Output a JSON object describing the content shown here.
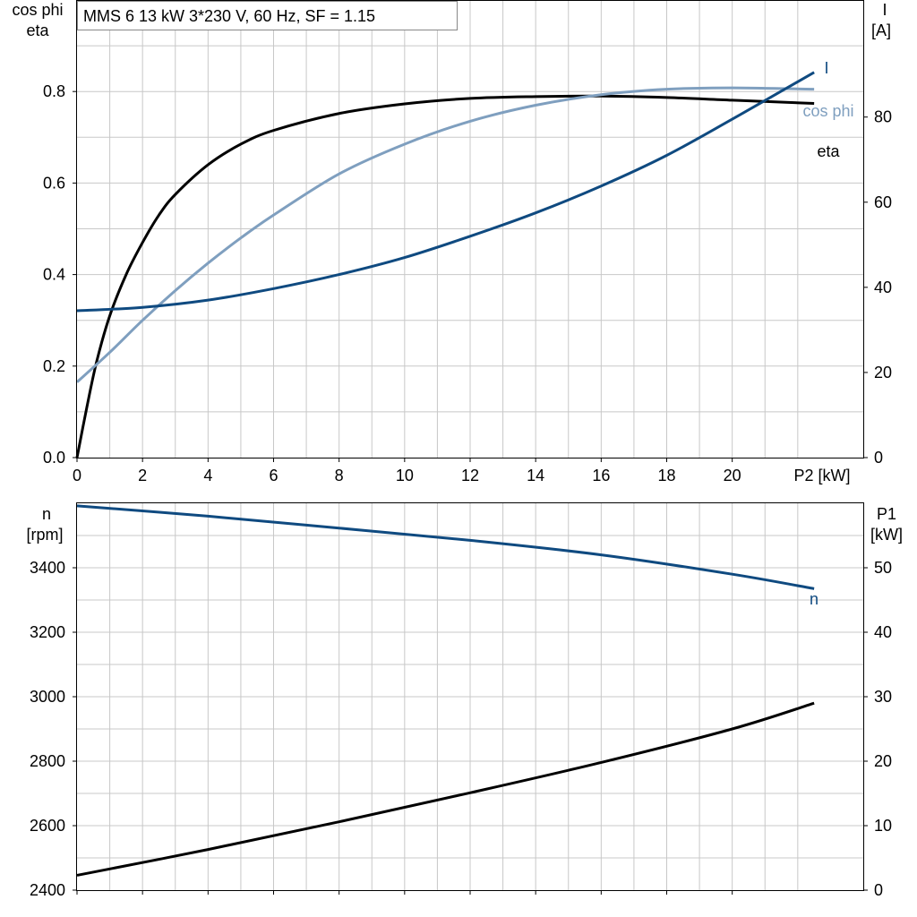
{
  "title": "MMS 6   13 kW   3*230 V, 60 Hz, SF = 1.15",
  "colors": {
    "eta": "#000000",
    "cos_phi": "#7f9fbf",
    "I": "#0f4a80",
    "n": "#0f4a80",
    "P1": "#000000",
    "grid": "#c8c8c8"
  },
  "chart_data": [
    {
      "type": "line",
      "xlabel": "P2 [kW]",
      "xlim": [
        0,
        24
      ],
      "xticks": [
        0,
        2,
        4,
        6,
        8,
        10,
        12,
        14,
        16,
        18,
        20
      ],
      "left_axis": {
        "label_lines": [
          "cos phi",
          "eta"
        ],
        "ylim": [
          0,
          1.0
        ],
        "ticks": [
          0.0,
          0.2,
          0.4,
          0.6,
          0.8
        ],
        "tick_labels": [
          "0.0",
          "0.2",
          "0.4",
          "0.6",
          "0.8"
        ]
      },
      "right_axis": {
        "label_lines": [
          "I",
          "[A]"
        ],
        "ylim": [
          0,
          107.5
        ],
        "ticks": [
          0,
          20,
          40,
          60,
          80
        ],
        "tick_labels": [
          "0",
          "20",
          "40",
          "60",
          "80"
        ]
      },
      "grid": true,
      "series": [
        {
          "name": "eta",
          "axis": "left",
          "x": [
            0,
            0.3,
            0.6,
            1.0,
            1.5,
            2.0,
            2.5,
            3.0,
            4.0,
            5.0,
            6.0,
            8.0,
            10.0,
            12.0,
            14.0,
            16.0,
            18.0,
            20.0,
            22.5
          ],
          "y": [
            0.0,
            0.11,
            0.21,
            0.31,
            0.4,
            0.47,
            0.53,
            0.575,
            0.64,
            0.685,
            0.715,
            0.752,
            0.773,
            0.785,
            0.789,
            0.79,
            0.787,
            0.781,
            0.774
          ]
        },
        {
          "name": "cos phi",
          "axis": "left",
          "x": [
            0,
            1,
            2,
            3,
            4,
            5,
            6,
            8,
            10,
            12,
            14,
            16,
            18,
            20,
            22.5
          ],
          "y": [
            0.165,
            0.23,
            0.3,
            0.365,
            0.425,
            0.48,
            0.53,
            0.62,
            0.685,
            0.735,
            0.77,
            0.793,
            0.805,
            0.808,
            0.805
          ]
        },
        {
          "name": "I",
          "axis": "right",
          "x": [
            0,
            2,
            4,
            6,
            8,
            10,
            12,
            14,
            16,
            18,
            20,
            22.5
          ],
          "y": [
            34.5,
            35.3,
            37.0,
            39.7,
            43.0,
            47.0,
            52.0,
            57.5,
            63.8,
            71.0,
            79.5,
            90.5
          ]
        }
      ]
    },
    {
      "type": "line",
      "xlim": [
        0,
        24
      ],
      "xticks": [
        0,
        2,
        4,
        6,
        8,
        10,
        12,
        14,
        16,
        18,
        20
      ],
      "left_axis": {
        "label_lines": [
          "n",
          "[rpm]"
        ],
        "ylim": [
          2400,
          3600
        ],
        "ticks": [
          2400,
          2600,
          2800,
          3000,
          3200,
          3400
        ],
        "tick_labels": [
          "2400",
          "2600",
          "2800",
          "3000",
          "3200",
          "3400"
        ]
      },
      "right_axis": {
        "label_lines": [
          "P1",
          "[kW]"
        ],
        "ylim": [
          0,
          60
        ],
        "ticks": [
          0,
          10,
          20,
          30,
          40,
          50
        ],
        "tick_labels": [
          "0",
          "10",
          "20",
          "30",
          "40",
          "50"
        ]
      },
      "grid": true,
      "series": [
        {
          "name": "n",
          "axis": "left",
          "x": [
            0,
            4,
            8,
            12,
            16,
            20,
            22.5
          ],
          "y": [
            3592,
            3560,
            3523,
            3485,
            3440,
            3380,
            3335
          ]
        },
        {
          "name": "",
          "axis": "right",
          "x": [
            0,
            4,
            8,
            12,
            16,
            20,
            22.5
          ],
          "y": [
            2.3,
            6.3,
            10.6,
            15.1,
            19.8,
            25.0,
            29.0
          ]
        }
      ]
    }
  ]
}
